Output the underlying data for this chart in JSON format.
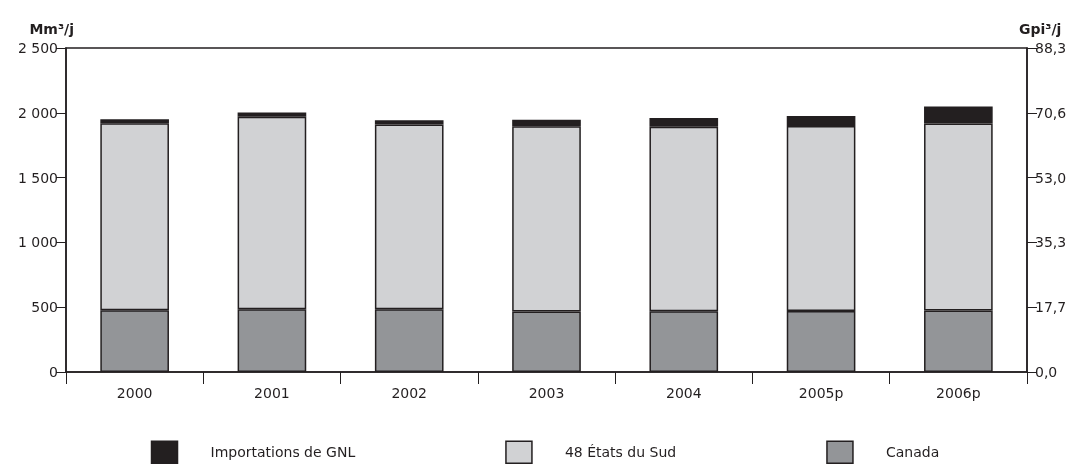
{
  "chart_data": {
    "type": "bar",
    "stacked": true,
    "ylabel": "Mm³/j",
    "y2label": "Gpi³/j",
    "categories": [
      "2000",
      "2001",
      "2002",
      "2003",
      "2004",
      "2005p",
      "2006p"
    ],
    "series": [
      {
        "name": "Canada",
        "color": "#939598",
        "values": [
          477,
          485,
          485,
          467,
          469,
          471,
          474
        ]
      },
      {
        "name": "48 États du Sud",
        "color": "#d1d2d4",
        "values": [
          1443,
          1484,
          1424,
          1429,
          1424,
          1428,
          1443
        ]
      },
      {
        "name": "Importations de GNL",
        "color": "#231f20",
        "values": [
          31,
          34,
          34,
          50,
          66,
          76,
          131
        ]
      }
    ],
    "ylim": [
      0,
      2500
    ],
    "yticks": [
      0,
      500,
      {
        "value": 1000,
        "label": "1 000"
      },
      {
        "value": 1500,
        "label": "1 500"
      },
      {
        "value": 2000,
        "label": "2 000"
      },
      {
        "value": 2500,
        "label": "2 500"
      }
    ],
    "y2lim": [
      0,
      88.3
    ],
    "y2ticks": [
      {
        "value": 0,
        "label": "0,0"
      },
      {
        "value": 17.7,
        "label": "17,7"
      },
      {
        "value": 35.3,
        "label": "35,3"
      },
      {
        "value": 53.0,
        "label": "53,0"
      },
      {
        "value": 70.6,
        "label": "70,6"
      },
      {
        "value": 88.3,
        "label": "88,3"
      }
    ],
    "grid": false,
    "legend": "bottom"
  }
}
